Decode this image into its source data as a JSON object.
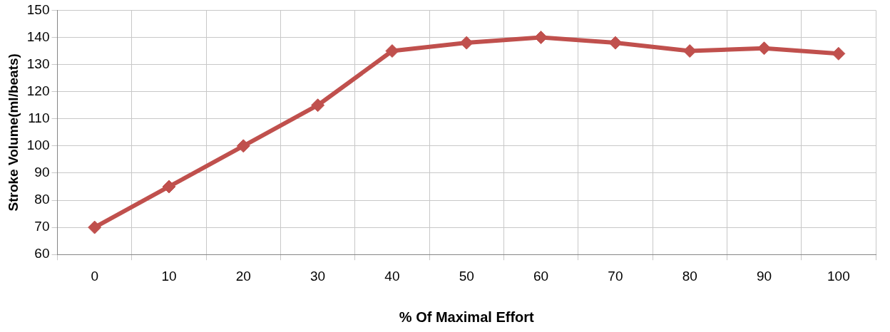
{
  "chart_data": {
    "type": "line",
    "xlabel": "% Of Maximal Effort",
    "ylabel": "Stroke Volume(ml/beats)",
    "categories": [
      "0",
      "10",
      "20",
      "30",
      "40",
      "50",
      "60",
      "70",
      "80",
      "90",
      "100"
    ],
    "series": [
      {
        "color": "#c0504d",
        "values": [
          70,
          85,
          100,
          115,
          135,
          138,
          140,
          138,
          135,
          136,
          134
        ]
      }
    ],
    "ylim": [
      60,
      150
    ],
    "yticks": [
      60,
      70,
      80,
      90,
      100,
      110,
      120,
      130,
      140,
      150
    ],
    "grid": true,
    "legend": false,
    "marker": "diamond",
    "line_style": "solid"
  }
}
